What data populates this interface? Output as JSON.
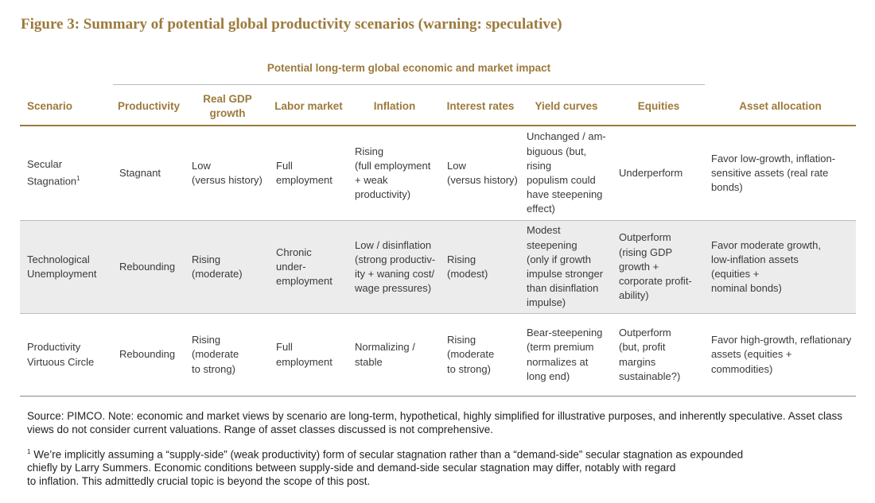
{
  "figure_title": "Figure 3: Summary of potential global productivity scenarios (warning: speculative)",
  "group_header": "Potential long-term global economic and market impact",
  "columns": {
    "scenario": "Scenario",
    "productivity": "Productivity",
    "real_gdp": "Real GDP\ngrowth",
    "labor": "Labor market",
    "inflation": "Inflation",
    "interest": "Interest rates",
    "yield": "Yield curves",
    "equities": "Equities",
    "asset": "Asset allocation"
  },
  "rows": [
    {
      "scenario": "Secular\nStagnation",
      "scenario_sup": "1",
      "productivity": "Stagnant",
      "real_gdp": "Low\n(versus history)",
      "labor": "Full\nemployment",
      "inflation": "Rising\n(full employment\n+ weak\nproductivity)",
      "interest": "Low\n(versus history)",
      "yield": "Unchanged / am-\nbiguous (but, rising\npopulism could\nhave steepening\neffect)",
      "equities": "Underperform",
      "asset": "Favor low-growth, inflation-\nsensitive assets (real rate bonds)"
    },
    {
      "scenario": "Technological\nUnemployment",
      "productivity": "Rebounding",
      "real_gdp": "Rising\n(moderate)",
      "labor": "Chronic\nunder-\nemployment",
      "inflation": "Low / disinflation\n(strong productiv-\nity + waning cost/\nwage pressures)",
      "interest": "Rising\n(modest)",
      "yield": "Modest steepening\n(only if growth\nimpulse stronger\nthan disinflation\nimpulse)",
      "equities": "Outperform\n(rising GDP\ngrowth +\ncorporate profit-\nability)",
      "asset": "Favor moderate growth,\nlow-inflation assets\n(equities +\nnominal bonds)"
    },
    {
      "scenario": "Productivity\nVirtuous Circle",
      "productivity": "Rebounding",
      "real_gdp": "Rising\n(moderate\nto strong)",
      "labor": "Full\nemployment",
      "inflation": "Normalizing /\nstable",
      "interest": "Rising\n(moderate\nto strong)",
      "yield": "Bear-steepening\n(term premium\nnormalizes at\nlong end)",
      "equities": "Outperform\n(but, profit margins\nsustainable?)",
      "asset": "Favor high-growth, reflationary\nassets (equities + commodities)"
    }
  ],
  "source_note": "Source: PIMCO. Note: economic and market views by scenario are long-term, hypothetical, highly simplified for illustrative purposes, and inherently speculative. Asset class views do not consider current valuations. Range of asset classes discussed is not comprehensive.",
  "footnote_marker": "1",
  "footnote": "We’re implicitly assuming a “supply-side” (weak productivity) form of secular stagnation rather than a “demand-side” secular stagnation as expounded\n chiefly by Larry Summers. Economic conditions between supply-side and demand-side secular stagnation may differ, notably with regard\n to inflation. This admittedly crucial topic is beyond the scope of this post.",
  "colors": {
    "accent": "#9c7a3c",
    "shade": "#ececec",
    "text": "#3a3a3a"
  }
}
